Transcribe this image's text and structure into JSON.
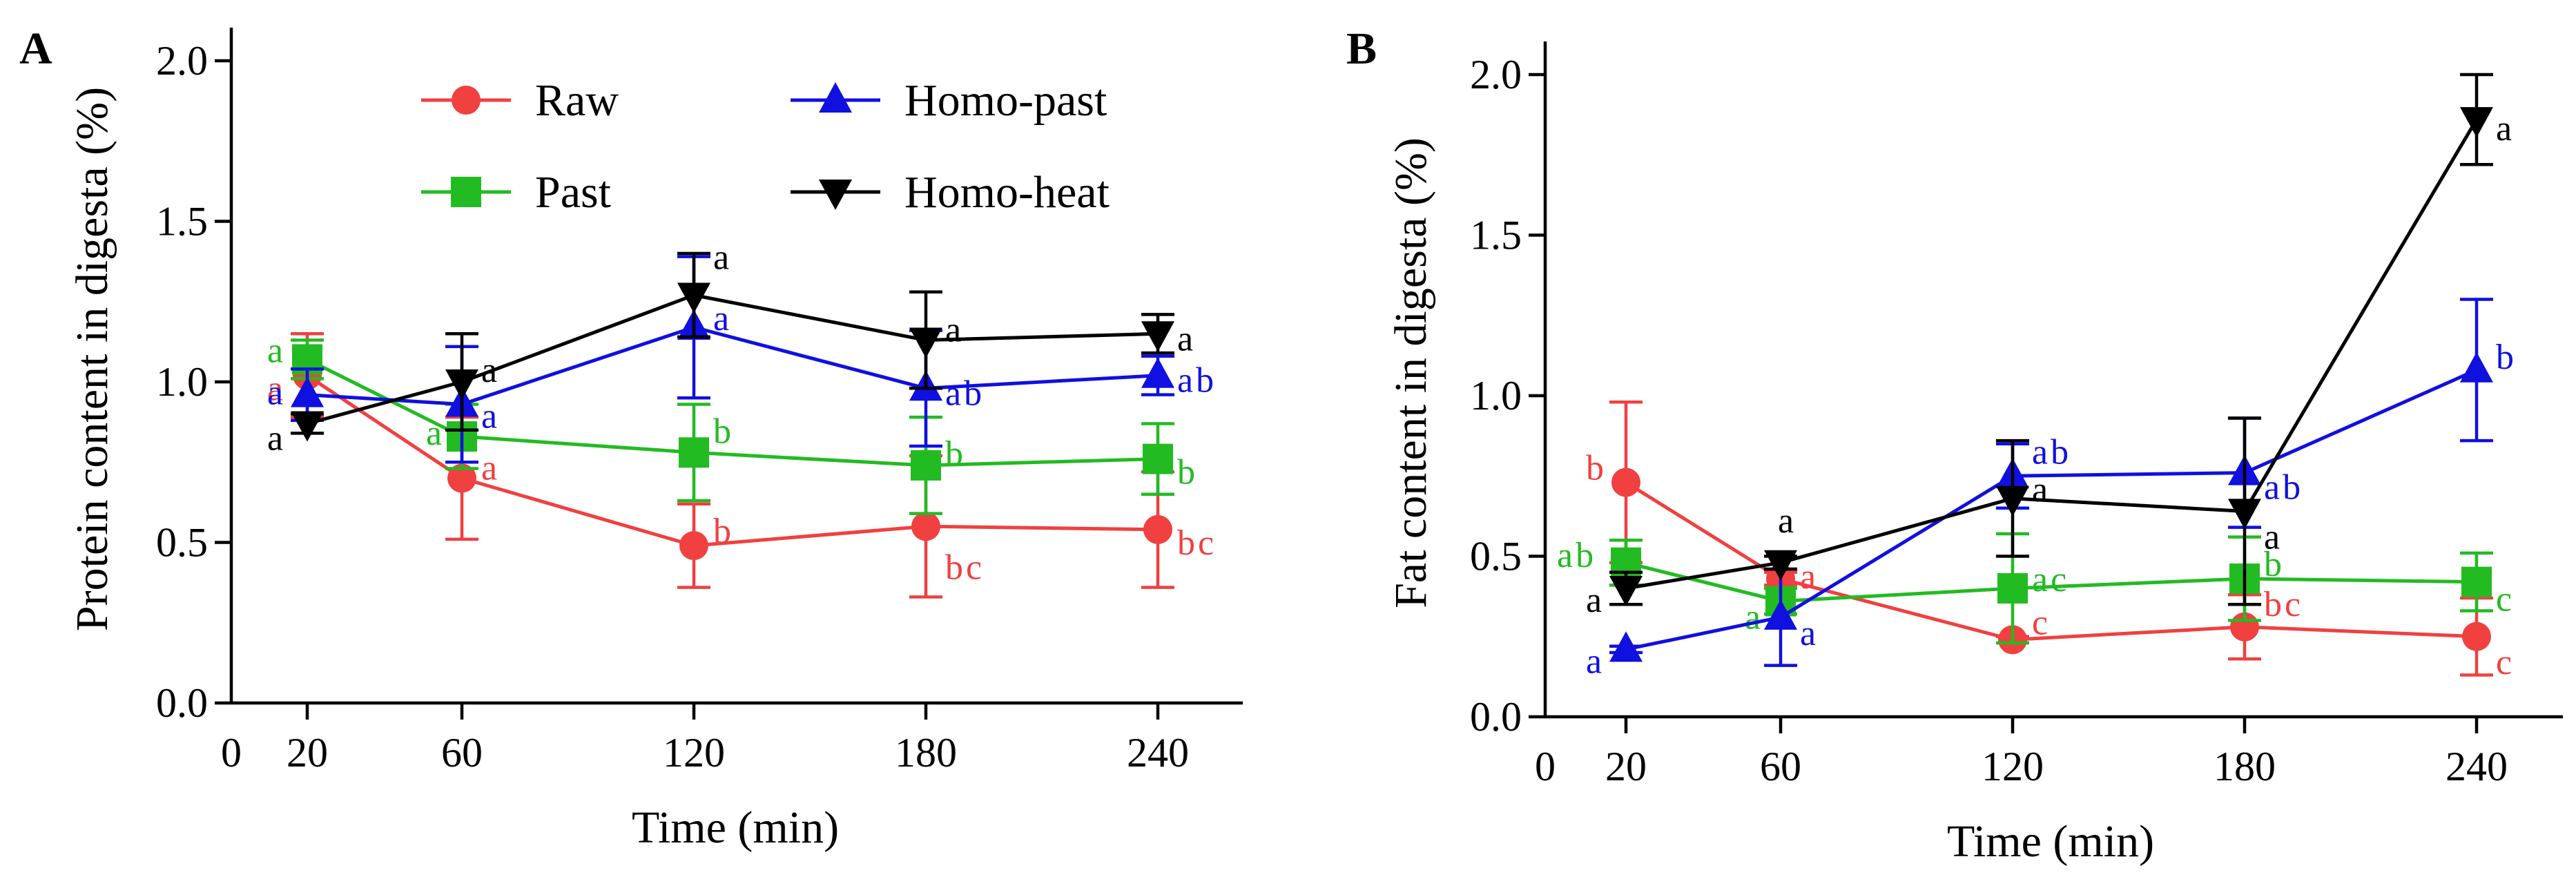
{
  "colors": {
    "raw": "#f04040",
    "past": "#22bb22",
    "homo_past": "#1010e0",
    "homo_heat": "#000000"
  },
  "chart_data": [
    {
      "type": "line",
      "panel": "A",
      "xlabel": "Time (min)",
      "ylabel": "Protein content in digesta  (%)",
      "x_ticks": [
        0,
        20,
        60,
        120,
        180,
        240
      ],
      "y_ticks": [
        "0.0",
        "0.5",
        "1.0",
        "1.5",
        "2.0"
      ],
      "xlim": [
        0,
        250
      ],
      "ylim": [
        0,
        2.0
      ],
      "legend": "top, inside, two columns",
      "x": [
        20,
        60,
        120,
        180,
        240
      ],
      "series": [
        {
          "name": "Raw",
          "key": "raw",
          "marker": "circle",
          "values": [
            1.02,
            0.7,
            0.49,
            0.55,
            0.54
          ],
          "errors": [
            0.13,
            0.19,
            0.13,
            0.22,
            0.18
          ],
          "labels": [
            "a",
            "a",
            "b",
            "bc",
            "bc"
          ]
        },
        {
          "name": "Past",
          "key": "past",
          "marker": "square",
          "values": [
            1.07,
            0.83,
            0.78,
            0.74,
            0.76
          ],
          "errors": [
            0.06,
            0.1,
            0.15,
            0.15,
            0.11
          ],
          "labels": [
            "a",
            "a",
            "b",
            "b",
            "b"
          ]
        },
        {
          "name": "Homo-past",
          "key": "homo_past",
          "marker": "triangle-up",
          "values": [
            0.96,
            0.93,
            1.17,
            0.98,
            1.02
          ],
          "errors": [
            0.08,
            0.18,
            0.22,
            0.18,
            0.06
          ],
          "labels": [
            "a",
            "a",
            "a",
            "ab",
            "ab"
          ]
        },
        {
          "name": "Homo-heat",
          "key": "homo_heat",
          "marker": "triangle-down",
          "values": [
            0.87,
            1.0,
            1.27,
            1.13,
            1.15
          ],
          "errors": [
            0.03,
            0.15,
            0.13,
            0.15,
            0.06
          ],
          "labels": [
            "a",
            "a",
            "a",
            "a",
            "a"
          ]
        }
      ]
    },
    {
      "type": "line",
      "panel": "B",
      "xlabel": "Time (min)",
      "ylabel": "Fat content in digesta (%)",
      "x_ticks": [
        0,
        20,
        60,
        120,
        180,
        240
      ],
      "y_ticks": [
        "0.0",
        "0.5",
        "1.0",
        "1.5",
        "2.0"
      ],
      "xlim": [
        0,
        250
      ],
      "ylim": [
        0,
        2.0
      ],
      "x": [
        20,
        60,
        120,
        180,
        240
      ],
      "series": [
        {
          "name": "Raw",
          "key": "raw",
          "marker": "circle",
          "values": [
            0.73,
            0.43,
            0.24,
            0.28,
            0.25
          ],
          "errors": [
            0.25,
            0.02,
            0.01,
            0.1,
            0.12
          ],
          "labels": [
            "b",
            "a",
            "c",
            "bc",
            "c"
          ]
        },
        {
          "name": "Past",
          "key": "past",
          "marker": "square",
          "values": [
            0.48,
            0.36,
            0.4,
            0.43,
            0.42
          ],
          "errors": [
            0.07,
            0.04,
            0.17,
            0.13,
            0.09
          ],
          "labels": [
            "ab",
            "a",
            "ac",
            "b",
            "c"
          ]
        },
        {
          "name": "Homo-past",
          "key": "homo_past",
          "marker": "triangle-up",
          "values": [
            0.21,
            0.31,
            0.75,
            0.76,
            1.08
          ],
          "errors": [
            0.01,
            0.15,
            0.1,
            0.17,
            0.22
          ],
          "labels": [
            "a",
            "a",
            "ab",
            "ab",
            "b"
          ]
        },
        {
          "name": "Homo-heat",
          "key": "homo_heat",
          "marker": "triangle-down",
          "values": [
            0.4,
            0.48,
            0.68,
            0.64,
            1.86
          ],
          "errors": [
            0.05,
            0.02,
            0.18,
            0.29,
            0.14
          ],
          "labels": [
            "a",
            "a",
            "a",
            "a",
            "a"
          ]
        }
      ]
    }
  ]
}
